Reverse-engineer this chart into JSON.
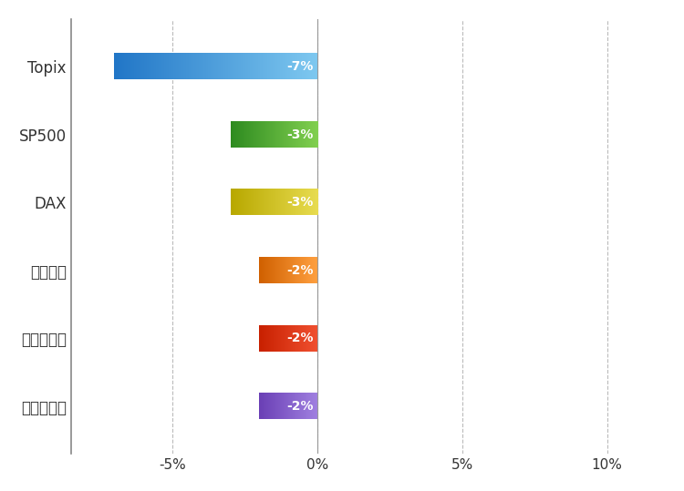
{
  "categories": [
    "Topix",
    "SP500",
    "DAX",
    "上海総合",
    "米ドル／円",
    "ユーロ／円"
  ],
  "values": [
    -7,
    -3,
    -3,
    -2,
    -2,
    -2
  ],
  "labels": [
    "-7%",
    "-3%",
    "-3%",
    "-2%",
    "-2%",
    "-2%"
  ],
  "bar_colors_dark": [
    "#2176C7",
    "#2E8B20",
    "#B8A800",
    "#D06000",
    "#C82000",
    "#6A3FB5"
  ],
  "bar_colors_light": [
    "#7EC8F0",
    "#82D050",
    "#E8DC50",
    "#FFA040",
    "#F05030",
    "#A080E0"
  ],
  "xlim": [
    -8.5,
    12
  ],
  "xticks": [
    -5,
    0,
    5,
    10
  ],
  "xtick_labels": [
    "-5%",
    "0%",
    "5%",
    "10%"
  ],
  "background_color": "#FFFFFF",
  "grid_color": "#BBBBBB",
  "text_color": "#333333",
  "label_fontsize": 12,
  "tick_fontsize": 11,
  "bar_label_fontsize": 10,
  "bar_height": 0.38
}
